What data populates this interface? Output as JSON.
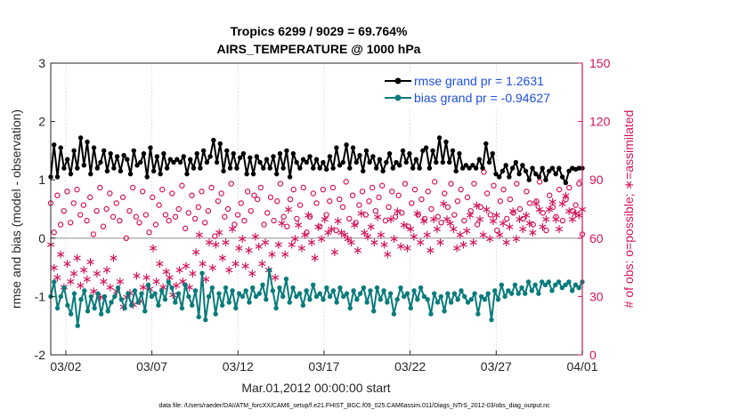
{
  "chart_data": {
    "type": "line",
    "title": "Tropics 6299 / 9029 = 69.764%",
    "subtitle": "AIRS_TEMPERATURE @ 1000 hPa",
    "xlabel": "Mar.01,2012 00:00:00 start",
    "ylabel_left": "rmse and bias (model - observation)",
    "ylabel_right": "# of obs: o=possible; ∗=assimilated",
    "footnote": "data file: /Users/raeder/DAI/ATM_forcXX/CAM6_setup/f.e21.FHIST_BGC.f09_025.CAM6assim.011/Diags_NTrS_2012-03/obs_diag_output.nc",
    "x_tick_labels": [
      "03/02",
      "03/07",
      "03/12",
      "03/17",
      "03/22",
      "03/27",
      "04/01"
    ],
    "x_tick_days": [
      1,
      6,
      11,
      16,
      21,
      26,
      31
    ],
    "xlim_days": [
      0.125,
      31.0
    ],
    "ylim_left": [
      -2,
      3
    ],
    "y_ticks_left": [
      "-2",
      "-1",
      "0",
      "1",
      "2",
      "3"
    ],
    "ylim_right": [
      0,
      150
    ],
    "y_ticks_right": [
      "0",
      "30",
      "60",
      "90",
      "120",
      "150"
    ],
    "colors": {
      "rmse": "#000000",
      "bias": "#0a7b7b",
      "obs": "#d4145a",
      "zero_line": "#b3b3b3",
      "legend_text": "#1f4fe0"
    },
    "legend_position": "top-right",
    "series": [
      {
        "name": "rmse grand pr = 1.2631",
        "axis": "left",
        "values": [
          1.05,
          1.6,
          1.05,
          1.55,
          1.2,
          1.35,
          1.1,
          1.5,
          1.2,
          1.72,
          1.25,
          1.65,
          1.1,
          1.55,
          1.2,
          1.3,
          1.5,
          1.15,
          1.45,
          1.2,
          1.4,
          1.15,
          1.42,
          1.35,
          1.1,
          1.5,
          1.25,
          1.3,
          1.45,
          1.05,
          1.55,
          1.15,
          1.4,
          1.1,
          1.45,
          1.2,
          1.35,
          1.3,
          1.35,
          1.3,
          1.4,
          1.1,
          1.35,
          1.2,
          1.45,
          1.2,
          1.5,
          1.3,
          1.4,
          1.68,
          1.3,
          1.62,
          1.15,
          1.5,
          1.2,
          1.45,
          1.2,
          1.38,
          1.45,
          1.1,
          1.38,
          1.1,
          1.4,
          1.3,
          1.2,
          1.35,
          1.2,
          1.4,
          1.1,
          1.45,
          1.2,
          1.5,
          1.05,
          1.45,
          1.3,
          1.2,
          1.35,
          1.3,
          1.4,
          1.2,
          1.35,
          1.2,
          1.3,
          1.18,
          1.4,
          1.2,
          1.55,
          1.25,
          1.3,
          1.6,
          1.2,
          1.55,
          1.3,
          1.42,
          1.15,
          1.5,
          1.3,
          1.4,
          1.2,
          1.35,
          1.15,
          1.3,
          1.45,
          1.2,
          1.3,
          1.25,
          1.5,
          1.3,
          1.45,
          1.2,
          1.35,
          1.2,
          1.5,
          1.55,
          1.2,
          1.5,
          1.3,
          1.72,
          1.3,
          1.65,
          1.3,
          1.5,
          1.15,
          1.45,
          1.2,
          1.25,
          1.2,
          1.25,
          1.2,
          1.35,
          1.2,
          1.62,
          1.3,
          1.45,
          1.1,
          1.05,
          1.15,
          1.25,
          1.05,
          1.2,
          1.3,
          1.1,
          1.25,
          1.15,
          1.0,
          1.2,
          1.1,
          1.05,
          1.2,
          1.0,
          1.15,
          1.2,
          1.1,
          1.2,
          1.05,
          0.95,
          1.15,
          1.2,
          1.18,
          1.2,
          1.2
        ]
      },
      {
        "name": "bias grand pr = -0.94627",
        "axis": "left",
        "values": [
          -1.0,
          -0.75,
          -1.2,
          -1.0,
          -0.85,
          -1.15,
          -1.3,
          -0.95,
          -1.5,
          -1.05,
          -0.9,
          -1.25,
          -1.0,
          -1.2,
          -0.95,
          -1.3,
          -1.0,
          -1.25,
          -1.1,
          -1.0,
          -0.85,
          -1.05,
          -1.2,
          -0.95,
          -1.15,
          -0.9,
          -1.1,
          -0.95,
          -1.25,
          -0.8,
          -1.0,
          -0.95,
          -1.15,
          -0.9,
          -1.05,
          -0.75,
          -0.85,
          -1.1,
          -0.95,
          -1.2,
          -0.8,
          -1.0,
          -1.15,
          -0.9,
          -1.35,
          -0.6,
          -1.4,
          -1.0,
          -0.85,
          -1.3,
          -0.95,
          -1.15,
          -0.85,
          -1.1,
          -0.9,
          -1.2,
          -0.95,
          -1.0,
          -0.9,
          -1.1,
          -0.85,
          -1.0,
          -0.95,
          -0.8,
          -1.05,
          -0.55,
          -0.9,
          -1.2,
          -0.85,
          -1.0,
          -0.7,
          -1.1,
          -0.85,
          -1.0,
          -0.95,
          -1.15,
          -0.9,
          -1.05,
          -0.8,
          -1.0,
          -0.95,
          -1.05,
          -0.85,
          -1.0,
          -0.9,
          -1.1,
          -0.85,
          -1.0,
          -0.95,
          -1.2,
          -0.9,
          -1.05,
          -0.95,
          -0.85,
          -1.1,
          -0.9,
          -1.25,
          -0.85,
          -1.05,
          -0.9,
          -1.1,
          -0.95,
          -1.3,
          -1.05,
          -0.85,
          -1.0,
          -0.95,
          -1.2,
          -0.9,
          -1.05,
          -0.85,
          -1.0,
          -1.05,
          -1.3,
          -0.95,
          -1.1,
          -1.0,
          -1.25,
          -0.95,
          -1.1,
          -0.95,
          -1.05,
          -0.9,
          -1.0,
          -1.1,
          -1.05,
          -0.95,
          -1.3,
          -1.0,
          -1.05,
          -0.95,
          -1.4,
          -0.9,
          -1.05,
          -0.8,
          -1.0,
          -0.9,
          -0.95,
          -0.8,
          -0.95,
          -0.85,
          -0.95,
          -0.75,
          -0.9,
          -0.8,
          -0.95,
          -0.75,
          -0.8,
          -0.75,
          -0.9,
          -0.8,
          -0.75,
          -0.85,
          -0.8,
          -0.75,
          -0.9,
          -0.8,
          -0.85,
          -0.75
        ]
      },
      {
        "name": "obs possible (o)",
        "axis": "right",
        "marker": "circle",
        "values": [
          78,
          63,
          82,
          67,
          74,
          84,
          68,
          78,
          85,
          72,
          77,
          69,
          81,
          62,
          74,
          86,
          66,
          75,
          83,
          71,
          78,
          69,
          81,
          60,
          74,
          86,
          71,
          68,
          84,
          72,
          63,
          81,
          67,
          77,
          85,
          72,
          69,
          83,
          71,
          75,
          87,
          65,
          73,
          82,
          70,
          76,
          84,
          68,
          74,
          86,
          61,
          79,
          83,
          71,
          75,
          88,
          67,
          72,
          78,
          69,
          84,
          74,
          82,
          80,
          86,
          67,
          73,
          81,
          69,
          79,
          88,
          71,
          66,
          80,
          85,
          70,
          77,
          86,
          63,
          71,
          83,
          78,
          66,
          85,
          72,
          79,
          86,
          64,
          80,
          76,
          89,
          70,
          82,
          68,
          77,
          84,
          72,
          79,
          86,
          74,
          81,
          87,
          69,
          76,
          84,
          71,
          82,
          73,
          88,
          66,
          78,
          85,
          72,
          80,
          70,
          84,
          75,
          89,
          71,
          68,
          83,
          76,
          88,
          72,
          79,
          85,
          69,
          81,
          74,
          88,
          67,
          76,
          94,
          83,
          72,
          87,
          64,
          79,
          85,
          70,
          80,
          73,
          88,
          75,
          70,
          84,
          78,
          67,
          79,
          89,
          73,
          64,
          82,
          76,
          71,
          85,
          69,
          80,
          86,
          74,
          77,
          88,
          62
        ]
      },
      {
        "name": "obs assimilated (∗)",
        "axis": "right",
        "values": [
          57,
          45,
          40,
          52,
          35,
          47,
          38,
          42,
          50,
          36,
          44,
          39,
          48,
          33,
          42,
          30,
          38,
          44,
          35,
          50,
          33,
          38,
          25,
          30,
          32,
          26,
          41,
          28,
          35,
          40,
          34,
          55,
          38,
          47,
          35,
          43,
          40,
          31,
          36,
          44,
          38,
          46,
          35,
          42,
          53,
          62,
          47,
          39,
          58,
          45,
          57,
          63,
          50,
          58,
          44,
          65,
          47,
          55,
          60,
          46,
          54,
          42,
          61,
          56,
          47,
          58,
          44,
          52,
          40,
          57,
          68,
          52,
          75,
          57,
          60,
          67,
          55,
          62,
          72,
          58,
          50,
          66,
          60,
          70,
          63,
          65,
          53,
          69,
          63,
          62,
          60,
          58,
          67,
          54,
          73,
          63,
          61,
          66,
          58,
          71,
          62,
          57,
          52,
          70,
          60,
          74,
          56,
          67,
          55,
          65,
          61,
          73,
          58,
          69,
          62,
          54,
          70,
          65,
          58,
          78,
          70,
          68,
          65,
          55,
          62,
          57,
          64,
          72,
          58,
          77,
          70,
          62,
          75,
          60,
          69,
          72,
          62,
          68,
          58,
          66,
          74,
          60,
          70,
          65,
          72,
          68,
          63,
          78,
          75,
          66,
          70,
          75,
          79,
          70,
          65,
          78,
          82,
          74,
          70,
          73,
          72,
          75
        ]
      }
    ]
  }
}
